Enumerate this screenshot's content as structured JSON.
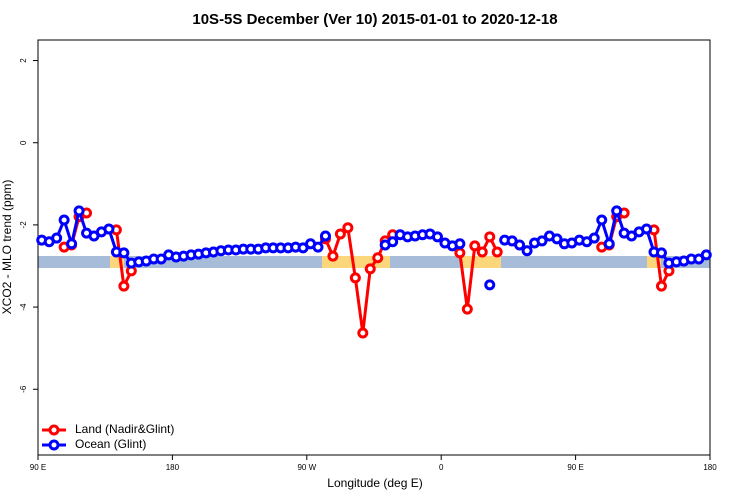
{
  "chart_data": {
    "type": "line",
    "title": "10S-5S December (Ver 10)   2015-01-01 to 2020-12-18",
    "x_label": "Longitude (deg E)",
    "y_label": "XCO2 - MLO trend (ppm)",
    "x": [
      92.5,
      97.5,
      102.5,
      107.5,
      112.5,
      117.5,
      122.5,
      127.5,
      132.5,
      137.5,
      142.5,
      147.5,
      152.5,
      157.5,
      162.5,
      167.5,
      172.5,
      177.5,
      182.5,
      187.5,
      192.5,
      197.5,
      202.5,
      207.5,
      212.5,
      217.5,
      222.5,
      227.5,
      232.5,
      237.5,
      242.5,
      247.5,
      252.5,
      257.5,
      262.5,
      267.5,
      272.5,
      277.5,
      282.5,
      287.5,
      292.5,
      297.5,
      302.5,
      307.5,
      312.5,
      317.5,
      322.5,
      327.5,
      332.5,
      337.5,
      342.5,
      347.5,
      352.5,
      357.5,
      362.5,
      367.5,
      372.5,
      377.5,
      382.5,
      387.5,
      392.5,
      397.5,
      402.5,
      407.5,
      412.5,
      417.5,
      422.5,
      427.5,
      432.5,
      437.5,
      442.5,
      447.5,
      452.5,
      457.5,
      462.5,
      467.5,
      472.5,
      477.5,
      482.5,
      487.5,
      492.5,
      497.5,
      502.5,
      507.5,
      512.5,
      517.5,
      522.5,
      527.5,
      532.5,
      537.5
    ],
    "series": [
      {
        "name": "Land (Nadir&Glint)",
        "color": "#ff0000",
        "values": [
          null,
          null,
          null,
          -2.54,
          -2.49,
          -1.8,
          -1.71,
          null,
          null,
          null,
          -2.12,
          -3.49,
          -3.12,
          null,
          null,
          null,
          null,
          null,
          null,
          null,
          null,
          null,
          null,
          null,
          null,
          null,
          null,
          null,
          null,
          null,
          null,
          null,
          null,
          null,
          null,
          null,
          null,
          null,
          -2.34,
          -2.76,
          -2.22,
          -2.07,
          -3.29,
          -4.63,
          -3.07,
          -2.8,
          -2.39,
          -2.24,
          null,
          null,
          null,
          null,
          null,
          null,
          null,
          null,
          -2.68,
          -4.05,
          -2.51,
          -2.66,
          -2.29,
          -2.66,
          null,
          null,
          null,
          null,
          null,
          null,
          null,
          null,
          null,
          null,
          null,
          null,
          null,
          -2.54,
          -2.49,
          -1.8,
          -1.71,
          null,
          null,
          null,
          -2.12,
          -3.49,
          -3.12,
          null,
          null,
          null,
          null,
          null
        ]
      },
      {
        "name": "Ocean (Glint)",
        "color": "#0000ff",
        "values": [
          -2.37,
          -2.41,
          -2.32,
          -1.88,
          -2.46,
          -1.66,
          -2.2,
          -2.27,
          -2.17,
          -2.1,
          -2.66,
          -2.68,
          -2.93,
          -2.9,
          -2.88,
          -2.83,
          -2.83,
          -2.73,
          -2.78,
          -2.76,
          -2.73,
          -2.71,
          -2.68,
          -2.66,
          -2.63,
          -2.61,
          -2.61,
          -2.59,
          -2.59,
          -2.59,
          -2.56,
          -2.56,
          -2.56,
          -2.56,
          -2.54,
          -2.56,
          -2.46,
          -2.54,
          -2.27,
          null,
          null,
          null,
          null,
          null,
          null,
          null,
          -2.49,
          -2.41,
          -2.24,
          -2.29,
          -2.27,
          -2.24,
          -2.22,
          -2.29,
          -2.44,
          -2.51,
          -2.46,
          null,
          null,
          null,
          -3.46,
          null,
          -2.37,
          -2.39,
          -2.49,
          -2.63,
          -2.44,
          -2.39,
          -2.27,
          -2.34,
          -2.46,
          -2.44,
          -2.37,
          -2.41,
          -2.32,
          -1.88,
          -2.46,
          -1.66,
          -2.2,
          -2.27,
          -2.17,
          -2.1,
          -2.66,
          -2.68,
          -2.93,
          -2.9,
          -2.88,
          -2.83,
          -2.83,
          -2.73
        ]
      }
    ],
    "xlim": [
      90,
      540
    ],
    "xticks": [
      {
        "value": 90,
        "label": "90 E"
      },
      180,
      {
        "value": 270,
        "label": "90 W"
      },
      {
        "value": 360,
        "label": "0"
      },
      {
        "value": 450,
        "label": "90 E"
      },
      {
        "value": 540,
        "label": "180"
      }
    ],
    "ylim": [
      -7.6,
      2.5
    ],
    "yticks": [
      2,
      0,
      -2,
      -4,
      -6
    ],
    "legend": "bottom-left"
  }
}
